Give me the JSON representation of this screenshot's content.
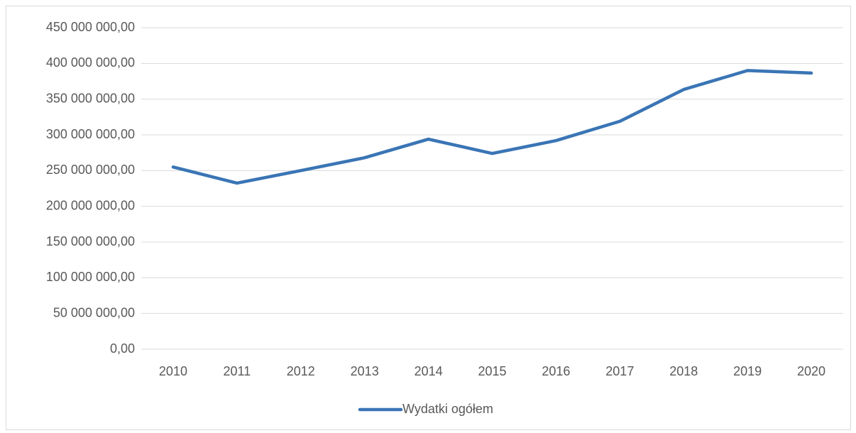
{
  "chart_data": {
    "type": "line",
    "categories": [
      "2010",
      "2011",
      "2012",
      "2013",
      "2014",
      "2015",
      "2016",
      "2017",
      "2018",
      "2019",
      "2020"
    ],
    "series": [
      {
        "name": "Wydatki ogółem",
        "color": "#3a75b5",
        "values": [
          255000000,
          232500000,
          250000000,
          268000000,
          294000000,
          274000000,
          292000000,
          319000000,
          363500000,
          390000000,
          386500000
        ]
      }
    ],
    "ylim": [
      0,
      450000000
    ],
    "yticks": [
      {
        "value": 0,
        "label": "0,00"
      },
      {
        "value": 50000000,
        "label": "50 000 000,00"
      },
      {
        "value": 100000000,
        "label": "100 000 000,00"
      },
      {
        "value": 150000000,
        "label": "150 000 000,00"
      },
      {
        "value": 200000000,
        "label": "200 000 000,00"
      },
      {
        "value": 250000000,
        "label": "250 000 000,00"
      },
      {
        "value": 300000000,
        "label": "300 000 000,00"
      },
      {
        "value": 350000000,
        "label": "350 000 000,00"
      },
      {
        "value": 400000000,
        "label": "400 000 000,00"
      },
      {
        "value": 450000000,
        "label": "450 000 000,00"
      }
    ],
    "grid": true,
    "legend": "bottom"
  }
}
